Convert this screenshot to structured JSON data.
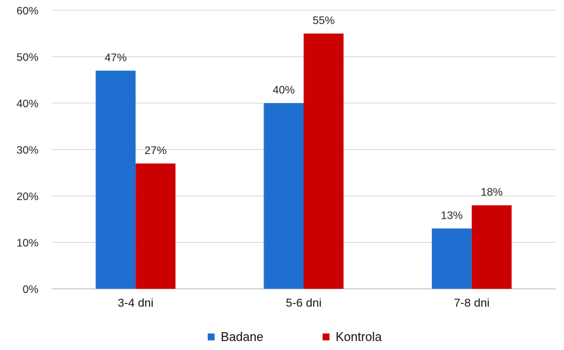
{
  "chart_data": {
    "type": "bar",
    "categories": [
      "3-4 dni",
      "5-6 dni",
      "7-8 dni"
    ],
    "series": [
      {
        "name": "Badane",
        "color": "#1F6FD1",
        "values": [
          47,
          40,
          13
        ],
        "labels": [
          "47%",
          "40%",
          "13%"
        ]
      },
      {
        "name": "Kontrola",
        "color": "#CC0000",
        "values": [
          27,
          55,
          18
        ],
        "labels": [
          "27%",
          "55%",
          "18%"
        ]
      }
    ],
    "ylim": [
      0,
      60
    ],
    "yticks": [
      "0%",
      "10%",
      "20%",
      "30%",
      "40%",
      "50%",
      "60%"
    ],
    "grid": true,
    "legend": "bottom",
    "title": "",
    "xlabel": "",
    "ylabel": ""
  }
}
